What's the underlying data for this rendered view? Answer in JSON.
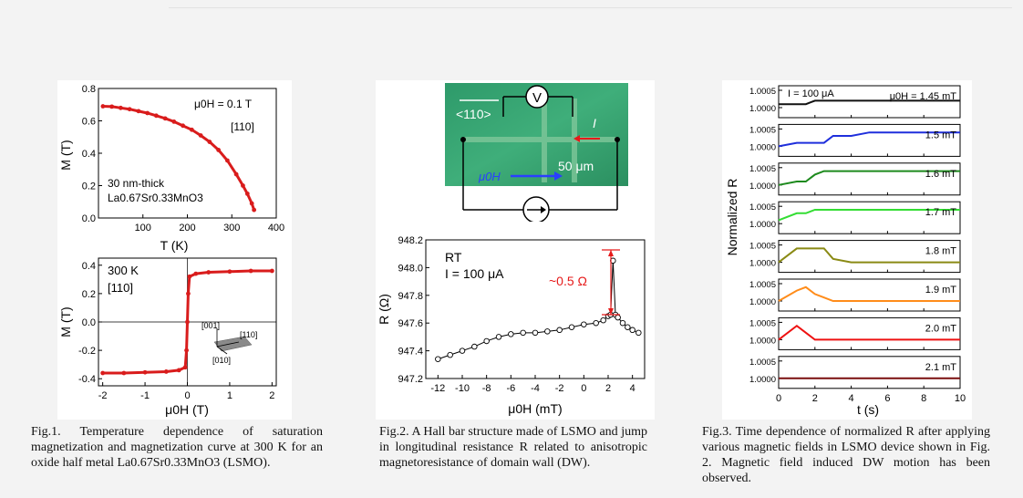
{
  "fig1": {
    "caption": "Fig.1. Temperature dependence of saturation magnetization and magnetization curve at 300 K for an oxide half metal La0.67Sr0.33MnO3 (LSMO).",
    "top": {
      "field_label": "μ0H = 0.1 T",
      "direction": "[110]",
      "film_line1": "30 nm-thick",
      "film_formula": "La0.67Sr0.33MnO3",
      "xlabel": "T (K)",
      "ylabel": "M (T)",
      "xticks": [
        "100",
        "200",
        "300",
        "400"
      ],
      "yticks": [
        "0.8",
        "0.6",
        "0.4",
        "0.2",
        "0.0"
      ]
    },
    "bottom": {
      "temp_label": "300 K",
      "direction": "[110]",
      "xlabel": "μ0H (T)",
      "ylabel": "M (T)",
      "xticks": [
        "-2",
        "-1",
        "0",
        "1",
        "2"
      ],
      "yticks": [
        "0.4",
        "0.2",
        "0.0",
        "-0.2",
        "-0.4"
      ],
      "axes_labels": [
        "[001]",
        "[110]",
        "[010]"
      ]
    }
  },
  "fig2": {
    "caption": "Fig.2. A Hall bar structure made of LSMO and jump in longitudinal resistance R related to anisotropic magnetoresistance of domain wall (DW).",
    "image_labels": {
      "dir": "<110>",
      "voltmeter": "V",
      "current": "I",
      "scale": "50 μm",
      "field": "μ0H"
    },
    "rt": "RT",
    "current_label": "I = 100 μA",
    "jump_label": "~0.5 Ω",
    "xlabel": "μ0H (mT)",
    "ylabel": "R (Ω)",
    "xticks": [
      "-12",
      "-10",
      "-8",
      "-6",
      "-4",
      "-2",
      "0",
      "2",
      "4"
    ],
    "yticks": [
      "948.2",
      "948.0",
      "947.8",
      "947.6",
      "947.4",
      "947.2"
    ]
  },
  "fig3": {
    "caption": "Fig.3. Time dependence of normalized R after applying various magnetic fields in LSMO device shown in Fig. 2. Magnetic field induced DW motion has been observed.",
    "ylabel": "Normalized R",
    "xlabel": "t (s)",
    "current_label": "I = 100 μA",
    "xticks": [
      "0",
      "2",
      "4",
      "6",
      "8",
      "10"
    ],
    "ytick_top": "1.0005",
    "ytick_bottom": "1.0000",
    "panels": [
      {
        "label": "μ0H = 1.45 mT",
        "color": "#111111"
      },
      {
        "label": "1.5 mT",
        "color": "#1f2fdc"
      },
      {
        "label": "1.6 mT",
        "color": "#1d8a1d"
      },
      {
        "label": "1.7 mT",
        "color": "#33dd33"
      },
      {
        "label": "1.8 mT",
        "color": "#8a8a14"
      },
      {
        "label": "1.9 mT",
        "color": "#ff8c1a"
      },
      {
        "label": "2.0 mT",
        "color": "#ee1111"
      },
      {
        "label": "2.1 mT",
        "color": "#7a0f0f"
      }
    ]
  },
  "chart_data": [
    {
      "type": "scatter",
      "title": "",
      "xlabel": "T (K)",
      "ylabel": "M (T)",
      "xlim": [
        0,
        400
      ],
      "ylim": [
        0,
        0.8
      ],
      "x": [
        10,
        30,
        50,
        70,
        90,
        110,
        130,
        150,
        170,
        190,
        210,
        230,
        250,
        270,
        290,
        310,
        325,
        335,
        345,
        350
      ],
      "y": [
        0.69,
        0.688,
        0.68,
        0.672,
        0.66,
        0.648,
        0.632,
        0.615,
        0.595,
        0.57,
        0.545,
        0.51,
        0.47,
        0.42,
        0.355,
        0.27,
        0.2,
        0.15,
        0.09,
        0.05
      ]
    },
    {
      "type": "line",
      "title": "",
      "xlabel": "μ0H (T)",
      "ylabel": "M (T)",
      "xlim": [
        -2,
        2
      ],
      "ylim": [
        -0.45,
        0.45
      ],
      "x": [
        -2,
        -1.5,
        -1,
        -0.5,
        -0.2,
        -0.05,
        -0.02,
        0,
        0.02,
        0.05,
        0.2,
        0.5,
        1,
        1.5,
        2
      ],
      "y": [
        -0.36,
        -0.36,
        -0.355,
        -0.35,
        -0.34,
        -0.32,
        -0.2,
        0,
        0.2,
        0.32,
        0.34,
        0.35,
        0.355,
        0.36,
        0.36
      ]
    },
    {
      "type": "scatter",
      "title": "",
      "xlabel": "μ0H (mT)",
      "ylabel": "R (Ω)",
      "xlim": [
        -13,
        5
      ],
      "ylim": [
        947.2,
        948.2
      ],
      "x": [
        -12,
        -11,
        -10,
        -9,
        -8,
        -7,
        -6,
        -5,
        -4,
        -3,
        -2,
        -1,
        0,
        1,
        1.6,
        2,
        2.2,
        2.4,
        2.6,
        2.8,
        3.2,
        3.6,
        4,
        4.5
      ],
      "y": [
        947.34,
        947.37,
        947.4,
        947.43,
        947.47,
        947.5,
        947.52,
        947.53,
        947.53,
        947.54,
        947.55,
        947.57,
        947.59,
        947.6,
        947.62,
        947.65,
        947.66,
        948.05,
        947.66,
        947.64,
        947.6,
        947.57,
        947.55,
        947.53
      ]
    },
    {
      "type": "line",
      "title": "",
      "xlabel": "t (s)",
      "ylabel": "Normalized R",
      "xlim": [
        0,
        10
      ],
      "ylim": [
        1.0,
        1.0005
      ],
      "x": [
        0,
        1,
        1.5,
        2,
        2.5,
        3,
        4,
        5,
        6,
        8,
        10
      ],
      "series": [
        {
          "name": "μ0H = 1.45 mT",
          "values": [
            1.0001,
            1.0001,
            1.0001,
            1.0002,
            1.0002,
            1.0002,
            1.0002,
            1.0002,
            1.0002,
            1.0002,
            1.0002
          ]
        },
        {
          "name": "1.5 mT",
          "values": [
            1.0,
            1.0001,
            1.0001,
            1.0001,
            1.0001,
            1.0003,
            1.0003,
            1.0004,
            1.0004,
            1.0004,
            1.0004
          ]
        },
        {
          "name": "1.6 mT",
          "values": [
            1.0,
            1.0001,
            1.0001,
            1.0003,
            1.0004,
            1.0004,
            1.0004,
            1.0004,
            1.0004,
            1.0004,
            1.0004
          ]
        },
        {
          "name": "1.7 mT",
          "values": [
            1.0001,
            1.0003,
            1.0003,
            1.0004,
            1.0004,
            1.0004,
            1.0004,
            1.0004,
            1.0004,
            1.0004,
            1.0004
          ]
        },
        {
          "name": "1.8 mT",
          "values": [
            1.0,
            1.0004,
            1.0004,
            1.0004,
            1.0004,
            1.0001,
            1.0,
            1.0,
            1.0,
            1.0,
            1.0
          ]
        },
        {
          "name": "1.9 mT",
          "values": [
            1.0,
            1.0003,
            1.0004,
            1.0002,
            1.0001,
            1.0,
            1.0,
            1.0,
            1.0,
            1.0,
            1.0
          ]
        },
        {
          "name": "2.0 mT",
          "values": [
            1.0,
            1.0004,
            1.0002,
            1.0,
            1.0,
            1.0,
            1.0,
            1.0,
            1.0,
            1.0,
            1.0
          ]
        },
        {
          "name": "2.1 mT",
          "values": [
            1.0,
            1.0,
            1.0,
            1.0,
            1.0,
            1.0,
            1.0,
            1.0,
            1.0,
            1.0,
            1.0
          ]
        }
      ]
    }
  ]
}
